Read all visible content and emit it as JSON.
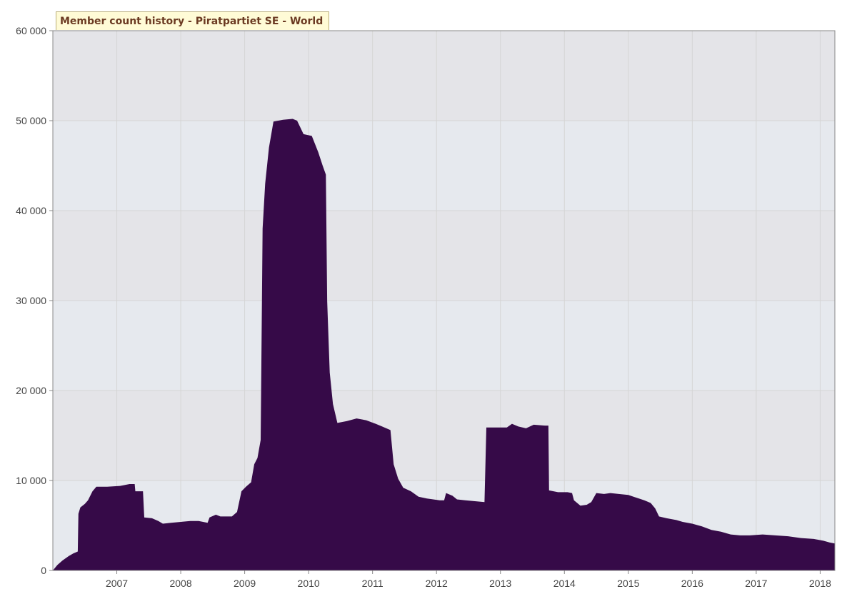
{
  "chart_data": {
    "type": "area",
    "title": "Member count history - Piratpartiet SE - World",
    "xlabel": "",
    "ylabel": "",
    "x_range": [
      2006.0,
      2018.23
    ],
    "ylim": [
      0,
      60000
    ],
    "x_ticks": [
      {
        "value": 2007,
        "label": "2007"
      },
      {
        "value": 2008,
        "label": "2008"
      },
      {
        "value": 2009,
        "label": "2009"
      },
      {
        "value": 2010,
        "label": "2010"
      },
      {
        "value": 2011,
        "label": "2011"
      },
      {
        "value": 2012,
        "label": "2012"
      },
      {
        "value": 2013,
        "label": "2013"
      },
      {
        "value": 2014,
        "label": "2014"
      },
      {
        "value": 2015,
        "label": "2015"
      },
      {
        "value": 2016,
        "label": "2016"
      },
      {
        "value": 2017,
        "label": "2017"
      },
      {
        "value": 2018,
        "label": "2018"
      }
    ],
    "y_ticks": [
      {
        "value": 0,
        "label": "0"
      },
      {
        "value": 10000,
        "label": "10 000"
      },
      {
        "value": 20000,
        "label": "20 000"
      },
      {
        "value": 30000,
        "label": "30 000"
      },
      {
        "value": 40000,
        "label": "40 000"
      },
      {
        "value": 50000,
        "label": "50 000"
      },
      {
        "value": 60000,
        "label": "60 000"
      }
    ],
    "grid": true,
    "colors": {
      "area": "#360a48",
      "band_light": "#e6e9ee",
      "band_dark": "#e4e4e8",
      "grid": "#d5d5d5",
      "axis": "#888888"
    },
    "series": [
      {
        "values": [
          [
            2006.0,
            0
          ],
          [
            2006.07,
            600
          ],
          [
            2006.15,
            1100
          ],
          [
            2006.25,
            1600
          ],
          [
            2006.32,
            1900
          ],
          [
            2006.39,
            2100
          ],
          [
            2006.4,
            6300
          ],
          [
            2006.43,
            7000
          ],
          [
            2006.5,
            7400
          ],
          [
            2006.55,
            7800
          ],
          [
            2006.62,
            8800
          ],
          [
            2006.68,
            9300
          ],
          [
            2006.85,
            9300
          ],
          [
            2007.05,
            9400
          ],
          [
            2007.2,
            9600
          ],
          [
            2007.28,
            9600
          ],
          [
            2007.29,
            8800
          ],
          [
            2007.41,
            8800
          ],
          [
            2007.43,
            5900
          ],
          [
            2007.55,
            5800
          ],
          [
            2007.65,
            5500
          ],
          [
            2007.72,
            5200
          ],
          [
            2007.85,
            5300
          ],
          [
            2008.0,
            5400
          ],
          [
            2008.15,
            5500
          ],
          [
            2008.28,
            5500
          ],
          [
            2008.42,
            5300
          ],
          [
            2008.45,
            5900
          ],
          [
            2008.55,
            6200
          ],
          [
            2008.62,
            6000
          ],
          [
            2008.8,
            6000
          ],
          [
            2008.88,
            6500
          ],
          [
            2008.95,
            8800
          ],
          [
            2009.02,
            9300
          ],
          [
            2009.1,
            9800
          ],
          [
            2009.15,
            11800
          ],
          [
            2009.2,
            12500
          ],
          [
            2009.25,
            14500
          ],
          [
            2009.28,
            38000
          ],
          [
            2009.32,
            43000
          ],
          [
            2009.38,
            47000
          ],
          [
            2009.45,
            49900
          ],
          [
            2009.6,
            50100
          ],
          [
            2009.75,
            50200
          ],
          [
            2009.82,
            50000
          ],
          [
            2009.92,
            48500
          ],
          [
            2010.05,
            48300
          ],
          [
            2010.15,
            46500
          ],
          [
            2010.22,
            45000
          ],
          [
            2010.27,
            44000
          ],
          [
            2010.29,
            30000
          ],
          [
            2010.33,
            22000
          ],
          [
            2010.38,
            18500
          ],
          [
            2010.45,
            16400
          ],
          [
            2010.6,
            16600
          ],
          [
            2010.75,
            16900
          ],
          [
            2010.9,
            16700
          ],
          [
            2011.05,
            16300
          ],
          [
            2011.15,
            16000
          ],
          [
            2011.28,
            15600
          ],
          [
            2011.33,
            11800
          ],
          [
            2011.4,
            10200
          ],
          [
            2011.48,
            9200
          ],
          [
            2011.6,
            8800
          ],
          [
            2011.72,
            8200
          ],
          [
            2011.85,
            8000
          ],
          [
            2012.05,
            7800
          ],
          [
            2012.12,
            7800
          ],
          [
            2012.15,
            8600
          ],
          [
            2012.25,
            8300
          ],
          [
            2012.32,
            7900
          ],
          [
            2012.45,
            7800
          ],
          [
            2012.6,
            7700
          ],
          [
            2012.75,
            7600
          ],
          [
            2012.78,
            15900
          ],
          [
            2012.95,
            15900
          ],
          [
            2013.1,
            15900
          ],
          [
            2013.18,
            16300
          ],
          [
            2013.28,
            16000
          ],
          [
            2013.4,
            15800
          ],
          [
            2013.52,
            16200
          ],
          [
            2013.7,
            16100
          ],
          [
            2013.75,
            16100
          ],
          [
            2013.76,
            8900
          ],
          [
            2013.9,
            8700
          ],
          [
            2014.05,
            8700
          ],
          [
            2014.12,
            8600
          ],
          [
            2014.15,
            7800
          ],
          [
            2014.25,
            7200
          ],
          [
            2014.35,
            7300
          ],
          [
            2014.42,
            7600
          ],
          [
            2014.5,
            8600
          ],
          [
            2014.62,
            8500
          ],
          [
            2014.72,
            8600
          ],
          [
            2014.85,
            8500
          ],
          [
            2015.0,
            8400
          ],
          [
            2015.12,
            8100
          ],
          [
            2015.25,
            7800
          ],
          [
            2015.35,
            7500
          ],
          [
            2015.42,
            6900
          ],
          [
            2015.48,
            6000
          ],
          [
            2015.6,
            5800
          ],
          [
            2015.75,
            5600
          ],
          [
            2015.85,
            5400
          ],
          [
            2016.0,
            5200
          ],
          [
            2016.15,
            4900
          ],
          [
            2016.3,
            4500
          ],
          [
            2016.45,
            4300
          ],
          [
            2016.6,
            4000
          ],
          [
            2016.75,
            3900
          ],
          [
            2016.9,
            3900
          ],
          [
            2017.1,
            4000
          ],
          [
            2017.3,
            3900
          ],
          [
            2017.5,
            3800
          ],
          [
            2017.7,
            3600
          ],
          [
            2017.9,
            3500
          ],
          [
            2018.05,
            3300
          ],
          [
            2018.15,
            3100
          ],
          [
            2018.23,
            3000
          ]
        ]
      }
    ]
  }
}
